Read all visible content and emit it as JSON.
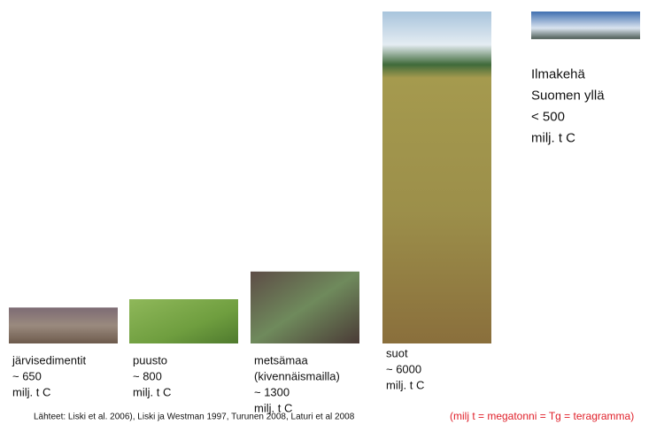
{
  "chart_data": {
    "type": "bar",
    "categories": [
      [
        "järvisedimentit"
      ],
      [
        "puusto"
      ],
      [
        "metsämaa",
        "(kivennäismailla)"
      ],
      [
        "suot"
      ],
      [
        "Ilmakehä",
        "Suomen yllä"
      ]
    ],
    "values": [
      650,
      800,
      1300,
      6000,
      500
    ],
    "value_labels": [
      "~ 650",
      "~ 800",
      "~ 1300",
      "~ 6000",
      "< 500"
    ],
    "unit": "milj. t C",
    "colors": [
      "url(#g0)",
      "url(#g1)",
      "url(#g2)",
      "url(#g3)",
      "url(#g4)"
    ],
    "source": "Lähteet: Liski et al. 2006), Liski ja Westman 1997, Turunen 2008, Laturi et al 2008",
    "note": "(milj t = megatonni = Tg = teragramma)"
  }
}
